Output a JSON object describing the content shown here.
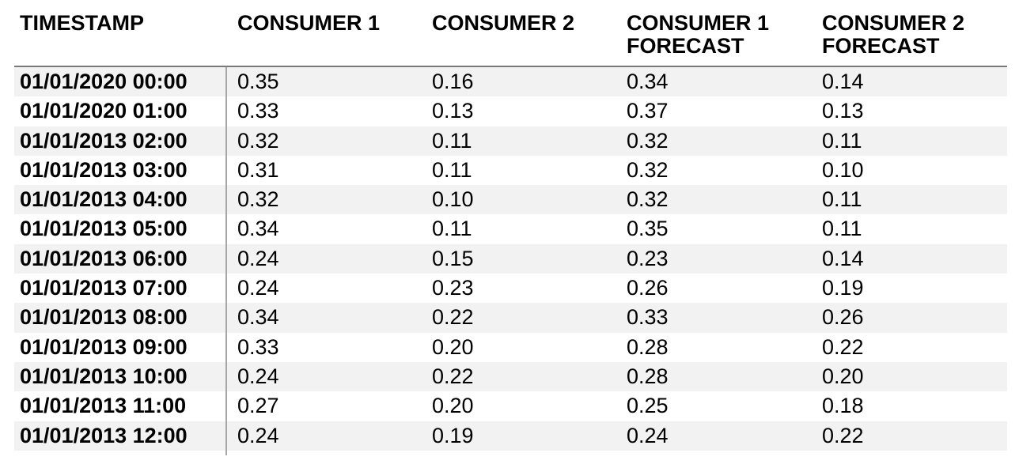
{
  "page": {
    "background": "#ffffff"
  },
  "colors": {
    "text": "#000000",
    "row_stripe": "#f2f2f2",
    "header_rule": "#7a7a7a",
    "column_divider": "#a6a6a6"
  },
  "chart_data": {
    "type": "table",
    "columns": [
      "TIMESTAMP",
      "CONSUMER 1",
      "CONSUMER 2",
      "CONSUMER 1 FORECAST",
      "CONSUMER 2 FORECAST"
    ],
    "rows": [
      [
        "01/01/2020 00:00",
        "0.35",
        "0.16",
        "0.34",
        "0.14"
      ],
      [
        "01/01/2020 01:00",
        "0.33",
        "0.13",
        "0.37",
        "0.13"
      ],
      [
        "01/01/2013 02:00",
        "0.32",
        "0.11",
        "0.32",
        "0.11"
      ],
      [
        "01/01/2013 03:00",
        "0.31",
        "0.11",
        "0.32",
        "0.10"
      ],
      [
        "01/01/2013 04:00",
        "0.32",
        "0.10",
        "0.32",
        "0.11"
      ],
      [
        "01/01/2013 05:00",
        "0.34",
        "0.11",
        "0.35",
        "0.11"
      ],
      [
        "01/01/2013 06:00",
        "0.24",
        "0.15",
        "0.23",
        "0.14"
      ],
      [
        "01/01/2013 07:00",
        "0.24",
        "0.23",
        "0.26",
        "0.19"
      ],
      [
        "01/01/2013 08:00",
        "0.34",
        "0.22",
        "0.33",
        "0.26"
      ],
      [
        "01/01/2013 09:00",
        "0.33",
        "0.20",
        "0.28",
        "0.22"
      ],
      [
        "01/01/2013 10:00",
        "0.24",
        "0.22",
        "0.28",
        "0.20"
      ],
      [
        "01/01/2013 11:00",
        "0.27",
        "0.20",
        "0.25",
        "0.18"
      ],
      [
        "01/01/2013 12:00",
        "0.24",
        "0.19",
        "0.24",
        "0.22"
      ]
    ],
    "layout": {
      "striped_rows": "odd rows shaded",
      "timestamp_column_bold": true,
      "header_bold": true
    }
  }
}
